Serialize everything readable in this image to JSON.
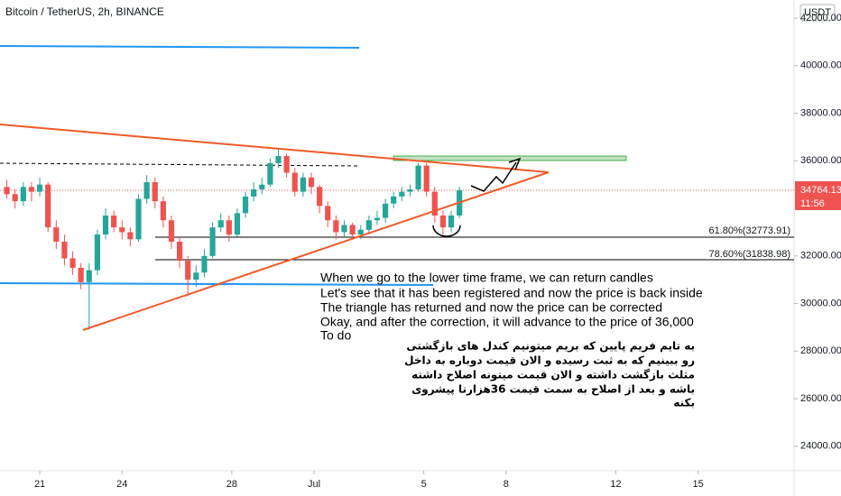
{
  "chart_data": {
    "type": "candlestick",
    "title": "Bitcoin / TetherUS, 2h, BINANCE",
    "currency": "USDT",
    "countdown": "11:56",
    "up_color": "#26a69a",
    "down_color": "#ef5350",
    "grid": false,
    "x": [
      19.8,
      20.1,
      20.4,
      20.7,
      21.0,
      21.3,
      21.6,
      21.9,
      22.2,
      22.5,
      22.8,
      23.1,
      23.4,
      23.7,
      24.0,
      24.3,
      24.6,
      24.9,
      25.2,
      25.5,
      25.8,
      26.1,
      26.4,
      26.7,
      27.0,
      27.3,
      27.6,
      27.9,
      28.2,
      28.5,
      28.8,
      29.1,
      29.4,
      29.7,
      30.0,
      30.3,
      30.6,
      30.9,
      31.2,
      31.5,
      31.8,
      32.1,
      32.4,
      32.7,
      33.0,
      33.3,
      33.6,
      33.9,
      34.2,
      34.5,
      34.8,
      35.1,
      35.4,
      35.7,
      36.0,
      36.3
    ],
    "open": [
      34900,
      34600,
      34300,
      34900,
      34700,
      35000,
      33200,
      32600,
      31900,
      31500,
      30900,
      31400,
      32900,
      33700,
      33200,
      33000,
      32700,
      34400,
      35100,
      34300,
      33500,
      32600,
      31800,
      31000,
      31300,
      32000,
      33200,
      33500,
      32900,
      33800,
      34500,
      34800,
      35000,
      35900,
      36200,
      35500,
      34700,
      35300,
      34900,
      34100,
      33500,
      33000,
      33300,
      32900,
      33100,
      33500,
      33600,
      34200,
      34500,
      34700,
      34800,
      35800,
      34700,
      33700,
      33200,
      33700
    ],
    "high": [
      35200,
      34800,
      35100,
      35100,
      35300,
      35100,
      33500,
      32900,
      32200,
      31700,
      31700,
      33100,
      34000,
      33900,
      33500,
      33200,
      34600,
      35400,
      35300,
      34500,
      33700,
      32800,
      32000,
      31600,
      32300,
      33400,
      33800,
      33700,
      34000,
      34700,
      35100,
      35300,
      36100,
      36500,
      36300,
      35700,
      35500,
      35500,
      35000,
      34300,
      33700,
      33500,
      33400,
      33300,
      33700,
      33900,
      34400,
      34700,
      34900,
      35000,
      35900,
      35900,
      34900,
      33900,
      33900,
      34900
    ],
    "low": [
      34400,
      34000,
      34100,
      34300,
      34500,
      33000,
      32300,
      31600,
      31200,
      30600,
      28900,
      31200,
      32700,
      33000,
      32700,
      32400,
      32600,
      34200,
      34000,
      33200,
      32300,
      31500,
      30300,
      30700,
      31100,
      31900,
      33000,
      32600,
      32800,
      33600,
      34300,
      34600,
      34900,
      35700,
      35300,
      34500,
      34500,
      34600,
      33800,
      33200,
      32700,
      32800,
      32700,
      32700,
      32900,
      33300,
      33400,
      34000,
      34300,
      34500,
      34700,
      34500,
      33400,
      32900,
      33000,
      33600
    ],
    "close": [
      34600,
      34300,
      34900,
      34700,
      35000,
      33200,
      32600,
      31900,
      31500,
      30900,
      31400,
      32900,
      33700,
      33200,
      33000,
      32700,
      34400,
      35100,
      34300,
      33500,
      32600,
      31800,
      31000,
      31300,
      32000,
      33200,
      33500,
      32900,
      33800,
      34500,
      34800,
      35000,
      35900,
      36200,
      35500,
      34700,
      35300,
      34900,
      34100,
      33500,
      33000,
      33300,
      32900,
      33100,
      33500,
      33600,
      34200,
      34500,
      34700,
      34800,
      35800,
      34700,
      33700,
      33200,
      33700,
      34764.13
    ],
    "xlim": [
      19.55,
      48.5
    ],
    "xticks": [
      {
        "value": 21,
        "label": "21"
      },
      {
        "value": 24,
        "label": "24"
      },
      {
        "value": 28,
        "label": "28"
      },
      {
        "value": 31,
        "label": "Jul"
      },
      {
        "value": 35,
        "label": "5"
      },
      {
        "value": 38,
        "label": "8"
      },
      {
        "value": 42,
        "label": "12"
      },
      {
        "value": 45,
        "label": "15"
      }
    ],
    "ylim": [
      22970,
      42760
    ],
    "yticks": [
      {
        "value": 24000,
        "label": "24000.00"
      },
      {
        "value": 26000,
        "label": "26000.00"
      },
      {
        "value": 28000,
        "label": "28000.00"
      },
      {
        "value": 30000,
        "label": "30000.00"
      },
      {
        "value": 32000,
        "label": "32000.00"
      },
      {
        "value": 36000,
        "label": "36000.00"
      },
      {
        "value": 38000,
        "label": "38000.00"
      },
      {
        "value": 40000,
        "label": "40000.00"
      },
      {
        "value": 42000,
        "label": "42000.00"
      }
    ],
    "fib_labels": [
      "61.80%(32773.91)",
      "78.60%(31838.98)"
    ],
    "note_en": [
      "When we go to the lower time frame, we can return candles",
      "Let's see that it has been registered and now the price is back inside",
      "The triangle has returned and now the price can be corrected",
      "Okay, and after the correction, it will advance to the price of 36,000",
      "To do"
    ],
    "note_fa": [
      "به تایم فریم پایین که بریم میتونیم کندل های بازگشتی",
      "رو ببینیم که به ثبت رسیده و الان قیمت دوباره به داخل",
      "مثلث بازگشت داشته و الان قیمت میتونه اصلاح داشته",
      "باشه و بعد از اصلاح به سمت قیمت 36هزارتا پیشروی",
      "بکنه"
    ]
  }
}
